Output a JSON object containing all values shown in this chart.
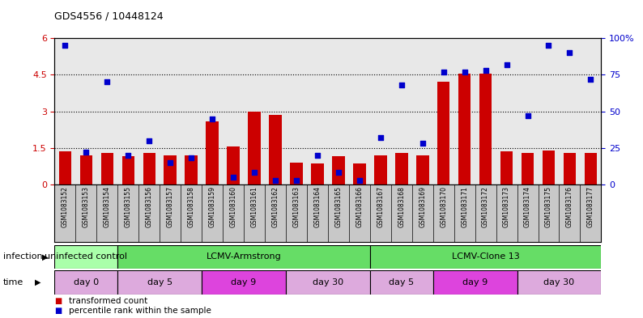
{
  "title": "GDS4556 / 10448124",
  "samples": [
    "GSM1083152",
    "GSM1083153",
    "GSM1083154",
    "GSM1083155",
    "GSM1083156",
    "GSM1083157",
    "GSM1083158",
    "GSM1083159",
    "GSM1083160",
    "GSM1083161",
    "GSM1083162",
    "GSM1083163",
    "GSM1083164",
    "GSM1083165",
    "GSM1083166",
    "GSM1083167",
    "GSM1083168",
    "GSM1083169",
    "GSM1083170",
    "GSM1083171",
    "GSM1083172",
    "GSM1083173",
    "GSM1083174",
    "GSM1083175",
    "GSM1083176",
    "GSM1083177"
  ],
  "red_bars": [
    1.35,
    1.2,
    1.3,
    1.15,
    1.3,
    1.2,
    1.2,
    2.6,
    1.55,
    3.0,
    2.85,
    0.9,
    0.85,
    1.15,
    0.85,
    1.2,
    1.3,
    1.2,
    4.2,
    4.55,
    4.55,
    1.35,
    1.3,
    1.4,
    1.3,
    1.3
  ],
  "blue_squares": [
    95,
    22,
    70,
    20,
    30,
    15,
    18,
    45,
    5,
    8,
    3,
    3,
    20,
    8,
    3,
    32,
    68,
    28,
    77,
    77,
    78,
    82,
    47,
    95,
    90,
    72
  ],
  "ylim_left": [
    0,
    6
  ],
  "ylim_right": [
    0,
    100
  ],
  "yticks_left": [
    0,
    1.5,
    3.0,
    4.5,
    6
  ],
  "yticks_right": [
    0,
    25,
    50,
    75,
    100
  ],
  "bar_color": "#cc0000",
  "square_color": "#0000cc",
  "dotted_lines": [
    1.5,
    3.0,
    4.5
  ],
  "background_color": "#ffffff",
  "plot_bg_color": "#e8e8e8",
  "infection_groups": [
    {
      "label": "uninfected control",
      "start": 0,
      "end": 3,
      "color": "#aaffaa"
    },
    {
      "label": "LCMV-Armstrong",
      "start": 3,
      "end": 15,
      "color": "#66dd66"
    },
    {
      "label": "LCMV-Clone 13",
      "start": 15,
      "end": 26,
      "color": "#66dd66"
    }
  ],
  "time_groups": [
    {
      "label": "day 0",
      "start": 0,
      "end": 3,
      "color": "#ddaadd"
    },
    {
      "label": "day 5",
      "start": 3,
      "end": 7,
      "color": "#ddaadd"
    },
    {
      "label": "day 9",
      "start": 7,
      "end": 11,
      "color": "#dd44dd"
    },
    {
      "label": "day 30",
      "start": 11,
      "end": 15,
      "color": "#ddaadd"
    },
    {
      "label": "day 5",
      "start": 15,
      "end": 18,
      "color": "#ddaadd"
    },
    {
      "label": "day 9",
      "start": 18,
      "end": 22,
      "color": "#dd44dd"
    },
    {
      "label": "day 30",
      "start": 22,
      "end": 26,
      "color": "#ddaadd"
    }
  ],
  "legend_items": [
    {
      "label": "transformed count",
      "color": "#cc0000"
    },
    {
      "label": "percentile rank within the sample",
      "color": "#0000cc"
    }
  ]
}
